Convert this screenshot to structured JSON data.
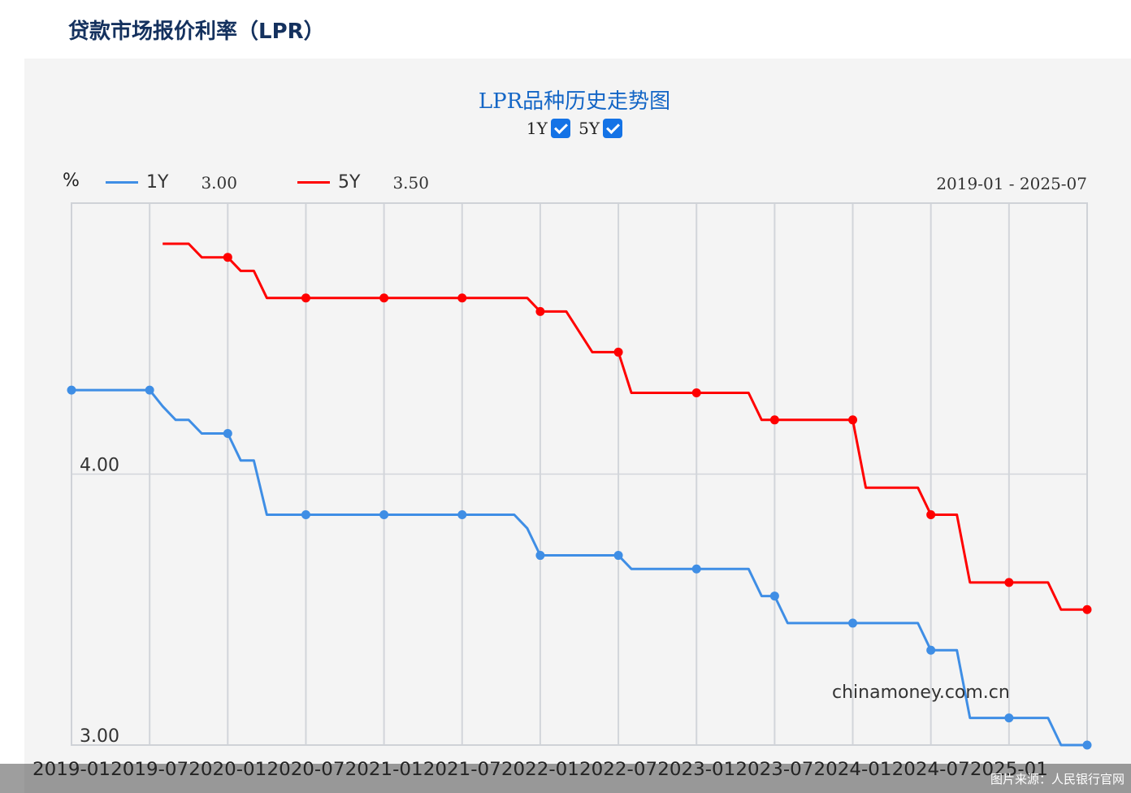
{
  "page": {
    "heading": "贷款市场报价利率（LPR）",
    "watermark": "chinamoney.com.cn",
    "credit": "图片来源：人民银行官网"
  },
  "chart_header": {
    "title": "LPR品种历史走势图",
    "toggles": [
      {
        "label": "1Y",
        "checked": true
      },
      {
        "label": "5Y",
        "checked": true
      }
    ],
    "unit": "%",
    "legend": [
      {
        "name": "1Y",
        "value": "3.00",
        "color": "#3f8ee5"
      },
      {
        "name": "5Y",
        "value": "3.50",
        "color": "#ff0000"
      }
    ],
    "range": "2019-01 - 2025-07"
  },
  "chart_data": {
    "type": "line",
    "x_ticks": [
      "2019-01",
      "2019-07",
      "2020-01",
      "2020-07",
      "2021-01",
      "2021-07",
      "2022-01",
      "2022-07",
      "2023-01",
      "2023-07",
      "2024-01",
      "2024-07",
      "2025-01"
    ],
    "x_range": [
      "2019-01",
      "2025-07"
    ],
    "y_ticks": [
      "4.00",
      "3.00"
    ],
    "ylim": [
      3.0,
      5.0
    ],
    "grid": true,
    "series": [
      {
        "name": "1Y",
        "color": "#3f8ee5",
        "points": [
          [
            "2019-01",
            4.31
          ],
          [
            "2019-07",
            4.31
          ],
          [
            "2019-08",
            4.25
          ],
          [
            "2019-09",
            4.2
          ],
          [
            "2019-10",
            4.2
          ],
          [
            "2019-11",
            4.15
          ],
          [
            "2019-12",
            4.15
          ],
          [
            "2020-01",
            4.15
          ],
          [
            "2020-02",
            4.05
          ],
          [
            "2020-03",
            4.05
          ],
          [
            "2020-04",
            3.85
          ],
          [
            "2020-07",
            3.85
          ],
          [
            "2021-01",
            3.85
          ],
          [
            "2021-07",
            3.85
          ],
          [
            "2021-11",
            3.85
          ],
          [
            "2021-12",
            3.8
          ],
          [
            "2022-01",
            3.7
          ],
          [
            "2022-07",
            3.7
          ],
          [
            "2022-08",
            3.65
          ],
          [
            "2023-01",
            3.65
          ],
          [
            "2023-05",
            3.65
          ],
          [
            "2023-06",
            3.55
          ],
          [
            "2023-07",
            3.55
          ],
          [
            "2023-08",
            3.45
          ],
          [
            "2024-01",
            3.45
          ],
          [
            "2024-06",
            3.45
          ],
          [
            "2024-07",
            3.35
          ],
          [
            "2024-09",
            3.35
          ],
          [
            "2024-10",
            3.1
          ],
          [
            "2025-01",
            3.1
          ],
          [
            "2025-04",
            3.1
          ],
          [
            "2025-05",
            3.0
          ],
          [
            "2025-07",
            3.0
          ]
        ],
        "markers": [
          "2019-01",
          "2019-07",
          "2020-01",
          "2020-07",
          "2021-01",
          "2021-07",
          "2022-01",
          "2022-07",
          "2023-01",
          "2023-07",
          "2024-01",
          "2024-07",
          "2025-01",
          "2025-07"
        ]
      },
      {
        "name": "5Y",
        "color": "#ff0000",
        "points": [
          [
            "2019-08",
            4.85
          ],
          [
            "2019-10",
            4.85
          ],
          [
            "2019-11",
            4.8
          ],
          [
            "2020-01",
            4.8
          ],
          [
            "2020-02",
            4.75
          ],
          [
            "2020-03",
            4.75
          ],
          [
            "2020-04",
            4.65
          ],
          [
            "2020-07",
            4.65
          ],
          [
            "2021-01",
            4.65
          ],
          [
            "2021-07",
            4.65
          ],
          [
            "2021-12",
            4.65
          ],
          [
            "2022-01",
            4.6
          ],
          [
            "2022-03",
            4.6
          ],
          [
            "2022-05",
            4.45
          ],
          [
            "2022-07",
            4.45
          ],
          [
            "2022-08",
            4.3
          ],
          [
            "2023-01",
            4.3
          ],
          [
            "2023-05",
            4.3
          ],
          [
            "2023-06",
            4.2
          ],
          [
            "2023-07",
            4.2
          ],
          [
            "2024-01",
            4.2
          ],
          [
            "2024-02",
            3.95
          ],
          [
            "2024-06",
            3.95
          ],
          [
            "2024-07",
            3.85
          ],
          [
            "2024-09",
            3.85
          ],
          [
            "2024-10",
            3.6
          ],
          [
            "2025-01",
            3.6
          ],
          [
            "2025-04",
            3.6
          ],
          [
            "2025-05",
            3.5
          ],
          [
            "2025-07",
            3.5
          ]
        ],
        "markers": [
          "2020-01",
          "2020-07",
          "2021-01",
          "2021-07",
          "2022-01",
          "2022-07",
          "2023-01",
          "2023-07",
          "2024-01",
          "2024-07",
          "2025-01",
          "2025-07"
        ]
      }
    ]
  }
}
